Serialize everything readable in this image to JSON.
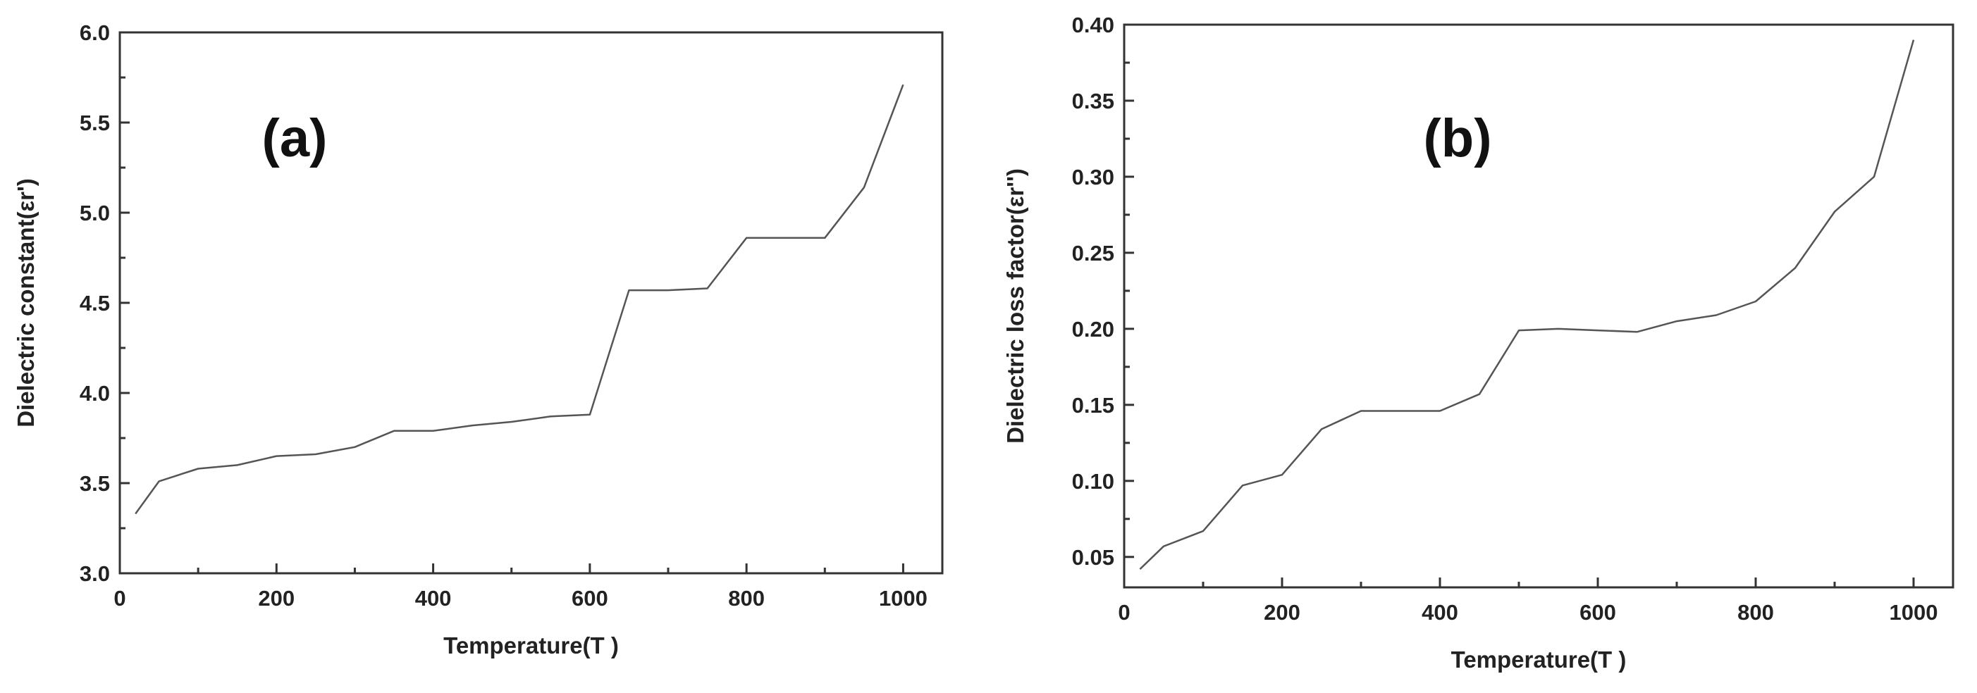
{
  "chart_data": [
    {
      "type": "line",
      "panel_label": "(a)",
      "xlabel": "Temperature(T )",
      "ylabel": "Dielectric constant(εr')",
      "xlim": [
        0,
        1050
      ],
      "ylim": [
        3.0,
        6.0
      ],
      "xticks": [
        "0",
        "200",
        "400",
        "600",
        "800",
        "1000"
      ],
      "yticks": [
        "3.0",
        "3.5",
        "4.0",
        "4.5",
        "5.0",
        "5.5",
        "6.0"
      ],
      "grid": false,
      "color": "#555555",
      "series": [
        {
          "x": [
            20,
            50,
            100,
            150,
            200,
            250,
            300,
            350,
            400,
            450,
            500,
            550,
            600,
            650,
            700,
            750,
            800,
            850,
            900,
            950,
            1000
          ],
          "y": [
            3.33,
            3.51,
            3.58,
            3.6,
            3.65,
            3.66,
            3.7,
            3.79,
            3.79,
            3.82,
            3.84,
            3.87,
            3.88,
            4.57,
            4.57,
            4.58,
            4.86,
            4.86,
            4.86,
            5.14,
            5.71
          ]
        }
      ]
    },
    {
      "type": "line",
      "panel_label": "(b)",
      "xlabel": "Temperature(T )",
      "ylabel": "Dielectric loss factor(εr'')",
      "xlim": [
        0,
        1050
      ],
      "ylim": [
        0.03,
        0.4
      ],
      "xticks": [
        "0",
        "200",
        "400",
        "600",
        "800",
        "1000"
      ],
      "yticks": [
        "0.05",
        "0.10",
        "0.15",
        "0.20",
        "0.25",
        "0.30",
        "0.35",
        "0.40"
      ],
      "grid": false,
      "color": "#555555",
      "series": [
        {
          "x": [
            20,
            50,
            100,
            150,
            200,
            250,
            300,
            350,
            400,
            450,
            500,
            550,
            600,
            650,
            700,
            750,
            800,
            850,
            900,
            950,
            1000
          ],
          "y": [
            0.042,
            0.057,
            0.067,
            0.097,
            0.104,
            0.134,
            0.146,
            0.146,
            0.146,
            0.157,
            0.199,
            0.2,
            0.199,
            0.198,
            0.205,
            0.209,
            0.218,
            0.24,
            0.277,
            0.3,
            0.39
          ]
        }
      ]
    }
  ]
}
